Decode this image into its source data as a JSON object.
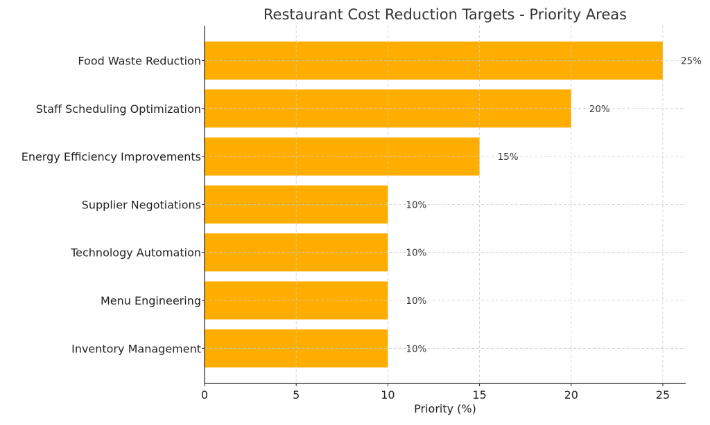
{
  "chart_data": {
    "type": "bar",
    "orientation": "horizontal",
    "title": "Restaurant Cost Reduction Targets - Priority Areas",
    "xlabel": "Priority (%)",
    "ylabel": "",
    "categories": [
      "Food Waste Reduction",
      "Staff Scheduling Optimization",
      "Energy Efficiency Improvements",
      "Supplier Negotiations",
      "Technology Automation",
      "Menu Engineering",
      "Inventory Management"
    ],
    "values": [
      25,
      20,
      15,
      10,
      10,
      10,
      10
    ],
    "data_labels": [
      "25%",
      "20%",
      "15%",
      "10%",
      "10%",
      "10%",
      "10%"
    ],
    "xlim": [
      0,
      26.25
    ],
    "xticks": [
      0,
      5,
      10,
      15,
      20,
      25
    ],
    "xtick_labels": [
      "0",
      "5",
      "10",
      "15",
      "20",
      "25"
    ],
    "grid": true,
    "bar_color": "#FFAE00"
  }
}
